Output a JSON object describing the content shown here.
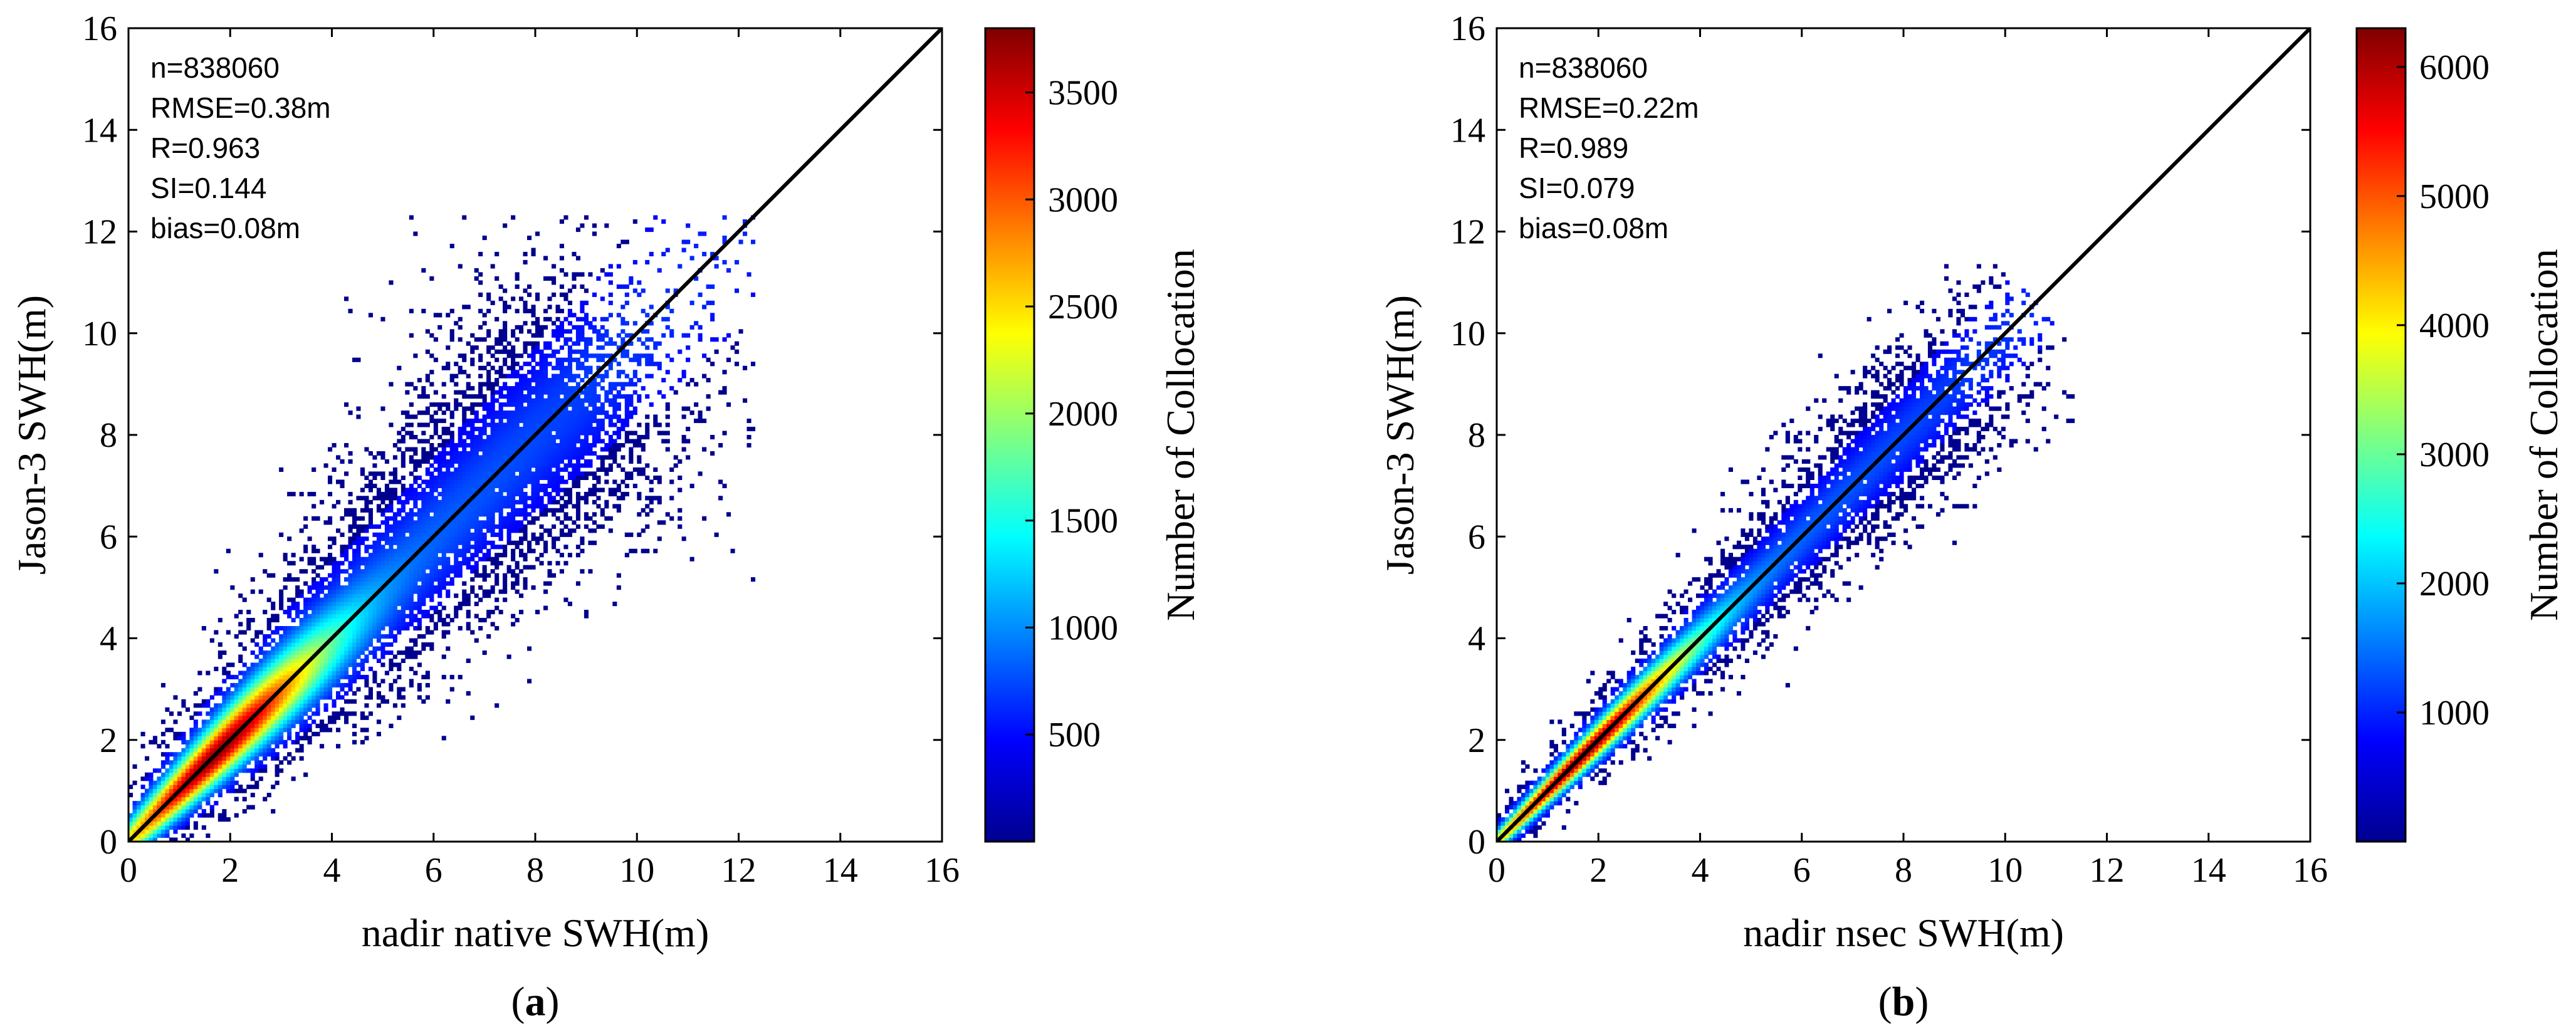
{
  "figure": {
    "caption_a": "(a)",
    "caption_b": "(b)"
  },
  "chart_data": [
    {
      "type": "heatmap",
      "panel": "a",
      "panel_label": "a",
      "title": "",
      "xlabel": "nadir native SWH(m)",
      "ylabel": "Jason-3 SWH(m)",
      "xlim": [
        0,
        16
      ],
      "ylim": [
        0,
        16
      ],
      "xticks": [
        0,
        2,
        4,
        6,
        8,
        10,
        12,
        14,
        16
      ],
      "yticks": [
        0,
        2,
        4,
        6,
        8,
        10,
        12,
        14,
        16
      ],
      "reference_line": "1:1",
      "stats_lines": [
        "n=838060",
        "RMSE=0.38m",
        "R=0.963",
        "SI=0.144",
        "bias=0.08m"
      ],
      "colorbar": {
        "label": "Number of Collocation",
        "range": [
          0,
          3800
        ],
        "ticks": [
          500,
          1000,
          1500,
          2000,
          2500,
          3000,
          3500
        ],
        "colormap": [
          "#00008f",
          "#0000ff",
          "#0080ff",
          "#00ffff",
          "#80ff80",
          "#ffff00",
          "#ff8000",
          "#ff0000",
          "#800000"
        ]
      },
      "density": {
        "center_x": 1.7,
        "center_y": 1.7,
        "spread": "wide",
        "max_extent": 12.3
      }
    },
    {
      "type": "heatmap",
      "panel": "b",
      "panel_label": "b",
      "title": "",
      "xlabel": "nadir nsec SWH(m)",
      "ylabel": "Jason-3 SWH(m)",
      "xlim": [
        0,
        16
      ],
      "ylim": [
        0,
        16
      ],
      "xticks": [
        0,
        2,
        4,
        6,
        8,
        10,
        12,
        14,
        16
      ],
      "yticks": [
        0,
        2,
        4,
        6,
        8,
        10,
        12,
        14,
        16
      ],
      "reference_line": "1:1",
      "stats_lines": [
        "n=838060",
        "RMSE=0.22m",
        "R=0.989",
        "SI=0.079",
        "bias=0.08m"
      ],
      "colorbar": {
        "label": "Number of Collocation",
        "range": [
          0,
          6300
        ],
        "ticks": [
          1000,
          2000,
          3000,
          4000,
          5000,
          6000
        ],
        "colormap": [
          "#00008f",
          "#0000ff",
          "#0080ff",
          "#00ffff",
          "#80ff80",
          "#ffff00",
          "#ff8000",
          "#ff0000",
          "#800000"
        ]
      },
      "density": {
        "center_x": 1.7,
        "center_y": 1.7,
        "spread": "narrow",
        "max_extent": 11.3
      }
    }
  ]
}
